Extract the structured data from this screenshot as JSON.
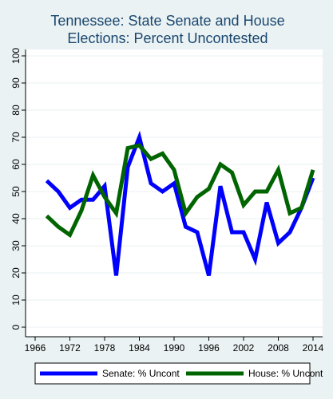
{
  "chart_data": {
    "type": "line",
    "title_lines": [
      "Tennessee: State Senate and House",
      "Elections: Percent Uncontested"
    ],
    "xlabel": "",
    "ylabel": "",
    "xlim": [
      1966,
      2014
    ],
    "ylim": [
      0,
      100
    ],
    "xticks": [
      "1966",
      "1972",
      "1978",
      "1984",
      "1990",
      "1996",
      "2002",
      "2008",
      "2014"
    ],
    "yticks": [
      "0",
      "10",
      "20",
      "30",
      "40",
      "50",
      "60",
      "70",
      "80",
      "90",
      "100"
    ],
    "grid": "horizontal",
    "legend_position": "bottom",
    "series": [
      {
        "name": "Senate: % Uncont",
        "color": "#0000ff",
        "x": [
          1968,
          1970,
          1972,
          1974,
          1976,
          1978,
          1980,
          1982,
          1984,
          1986,
          1988,
          1990,
          1992,
          1994,
          1996,
          1998,
          2000,
          2002,
          2004,
          2006,
          2008,
          2010,
          2012,
          2014
        ],
        "values": [
          54,
          50,
          44,
          47,
          47,
          52,
          19,
          59,
          70,
          53,
          50,
          53,
          37,
          35,
          19,
          52,
          35,
          35,
          25,
          46,
          31,
          35,
          44,
          55
        ]
      },
      {
        "name": "House: % Uncont",
        "color": "#006400",
        "x": [
          1968,
          1970,
          1972,
          1974,
          1976,
          1978,
          1980,
          1982,
          1984,
          1986,
          1988,
          1990,
          1992,
          1994,
          1996,
          1998,
          2000,
          2002,
          2004,
          2006,
          2008,
          2010,
          2012,
          2014
        ],
        "values": [
          41,
          37,
          34,
          43,
          56,
          48,
          42,
          66,
          67,
          62,
          64,
          58,
          42,
          48,
          51,
          60,
          57,
          45,
          50,
          50,
          58,
          42,
          44,
          58
        ]
      }
    ]
  }
}
